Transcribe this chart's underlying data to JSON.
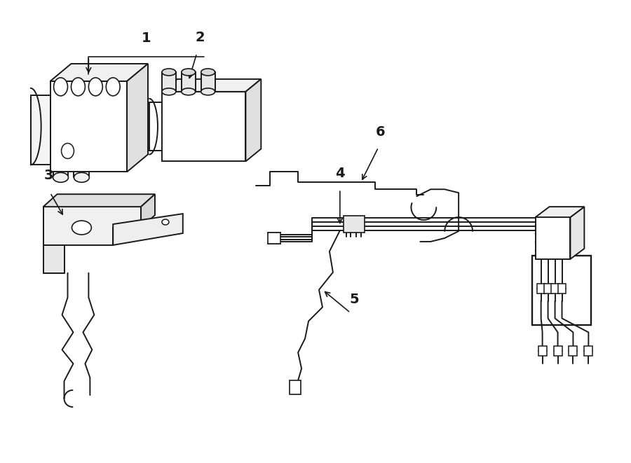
{
  "bg_color": "#ffffff",
  "line_color": "#1a1a1a",
  "line_width": 1.4,
  "label_color": "#1a1a1a",
  "label_fontsize": 12,
  "figsize": [
    9.0,
    6.61
  ],
  "dpi": 100
}
